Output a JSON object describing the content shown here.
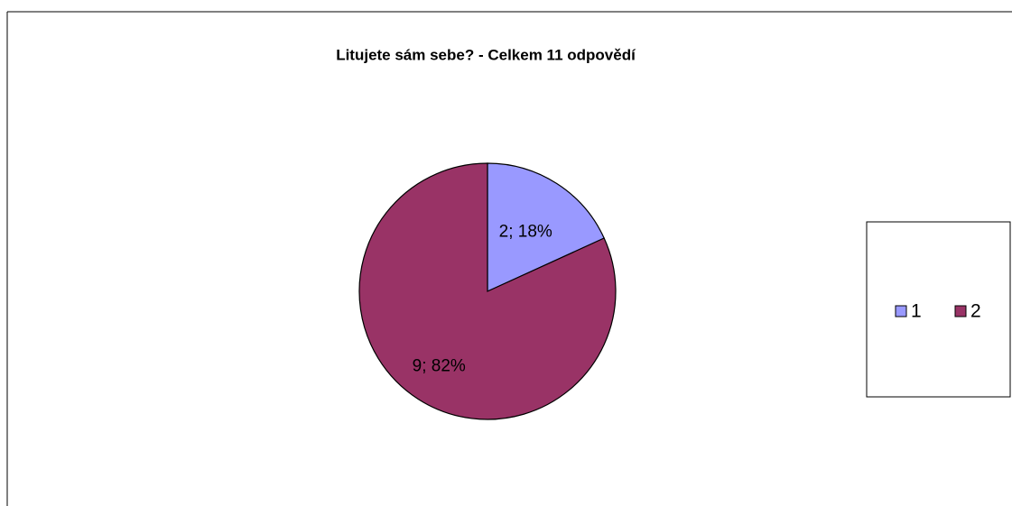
{
  "chart_data": {
    "type": "pie",
    "title": "Litujete sám sebe? - Celkem 11 odpovědí",
    "categories": [
      "1",
      "2"
    ],
    "values": [
      2,
      9
    ],
    "value_labels": [
      "2; 18%",
      "9; 82%"
    ],
    "colors": [
      "#9999ff",
      "#993366"
    ],
    "legend": "right"
  }
}
